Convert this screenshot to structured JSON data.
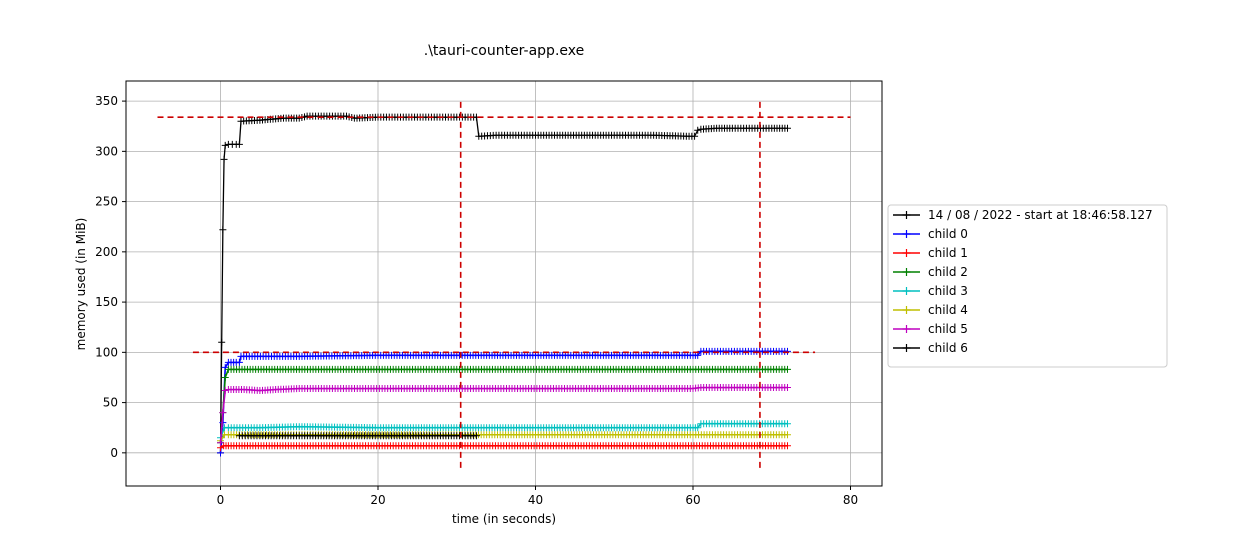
{
  "chart_data": {
    "type": "line",
    "title": ".\\tauri-counter-app.exe",
    "xlabel": "time (in seconds)",
    "ylabel": "memory used (in MiB)",
    "xlim": [
      -12,
      84
    ],
    "ylim": [
      -33,
      370
    ],
    "xticks": [
      0,
      20,
      40,
      60,
      80
    ],
    "yticks": [
      0,
      50,
      100,
      150,
      200,
      250,
      300,
      350
    ],
    "grid": true,
    "legend_position": "right",
    "series": [
      {
        "name": "14 / 08 / 2022 - start at 18:46:58.127",
        "color": "#000000",
        "x": [
          0,
          0.15,
          0.3,
          0.45,
          0.6,
          1.0,
          1.5,
          2.0,
          2.4,
          2.6,
          5,
          8,
          10,
          11,
          16,
          17,
          20,
          25,
          30,
          32.5,
          32.8,
          35,
          40,
          50,
          55,
          59.5,
          60.2,
          60.6,
          61,
          63,
          65,
          70,
          72
        ],
        "y": [
          0,
          110,
          222,
          292,
          306,
          307,
          307,
          307,
          307,
          330,
          331,
          333,
          333,
          335,
          335,
          333,
          334,
          334,
          334,
          334,
          315,
          316,
          316,
          316,
          316,
          315,
          315,
          321,
          322,
          323,
          323,
          323,
          323
        ]
      },
      {
        "name": "child 0",
        "color": "#0000ff",
        "x": [
          0,
          0.3,
          0.6,
          1.0,
          2.0,
          2.4,
          2.6,
          10,
          20,
          30,
          40,
          50,
          60,
          60.6,
          61,
          72
        ],
        "y": [
          0,
          30,
          85,
          90,
          90,
          90,
          96,
          96,
          97,
          97,
          97,
          97,
          97,
          97,
          101,
          101
        ]
      },
      {
        "name": "child 1",
        "color": "#ff0000",
        "x": [
          0,
          0.4,
          1,
          10,
          30,
          50,
          72
        ],
        "y": [
          5,
          7,
          7,
          7,
          7,
          7,
          7
        ]
      },
      {
        "name": "child 2",
        "color": "#008000",
        "x": [
          0,
          0.3,
          0.6,
          1,
          10,
          30,
          60,
          72
        ],
        "y": [
          10,
          40,
          75,
          83,
          83,
          83,
          83,
          83
        ]
      },
      {
        "name": "child 3",
        "color": "#00bfbf",
        "x": [
          0,
          0.5,
          1,
          5,
          10,
          20,
          30,
          40,
          50,
          60,
          60.6,
          61,
          72
        ],
        "y": [
          15,
          25,
          25,
          25,
          26,
          25,
          25,
          25,
          25,
          25,
          25,
          29,
          29
        ]
      },
      {
        "name": "child 4",
        "color": "#bfbf00",
        "x": [
          0,
          0.5,
          1,
          10,
          30,
          40,
          60,
          72
        ],
        "y": [
          12,
          18,
          18,
          18,
          18,
          18,
          18,
          18
        ]
      },
      {
        "name": "child 5",
        "color": "#bf00bf",
        "x": [
          0,
          0.3,
          0.6,
          1,
          3,
          5,
          7,
          10,
          30,
          50,
          60,
          61,
          72
        ],
        "y": [
          10,
          40,
          62,
          63,
          63,
          62,
          63,
          64,
          64,
          64,
          64,
          65,
          65
        ]
      },
      {
        "name": "child 6",
        "color": "#000000",
        "x": [
          2.4,
          5,
          10,
          20,
          30,
          32.5
        ],
        "y": [
          17,
          17,
          17,
          17,
          17,
          17
        ]
      }
    ],
    "reference_lines": [
      {
        "orientation": "horizontal",
        "y": 334,
        "x_from": -8,
        "x_to": 80,
        "color": "#cc0000"
      },
      {
        "orientation": "horizontal",
        "y": 100,
        "x_from": -3.5,
        "x_to": 75.5,
        "color": "#cc0000"
      },
      {
        "orientation": "vertical",
        "x": 30.5,
        "y_from": -15,
        "y_to": 352,
        "color": "#cc0000"
      },
      {
        "orientation": "vertical",
        "x": 68.5,
        "y_from": -15,
        "y_to": 352,
        "color": "#cc0000"
      }
    ]
  }
}
